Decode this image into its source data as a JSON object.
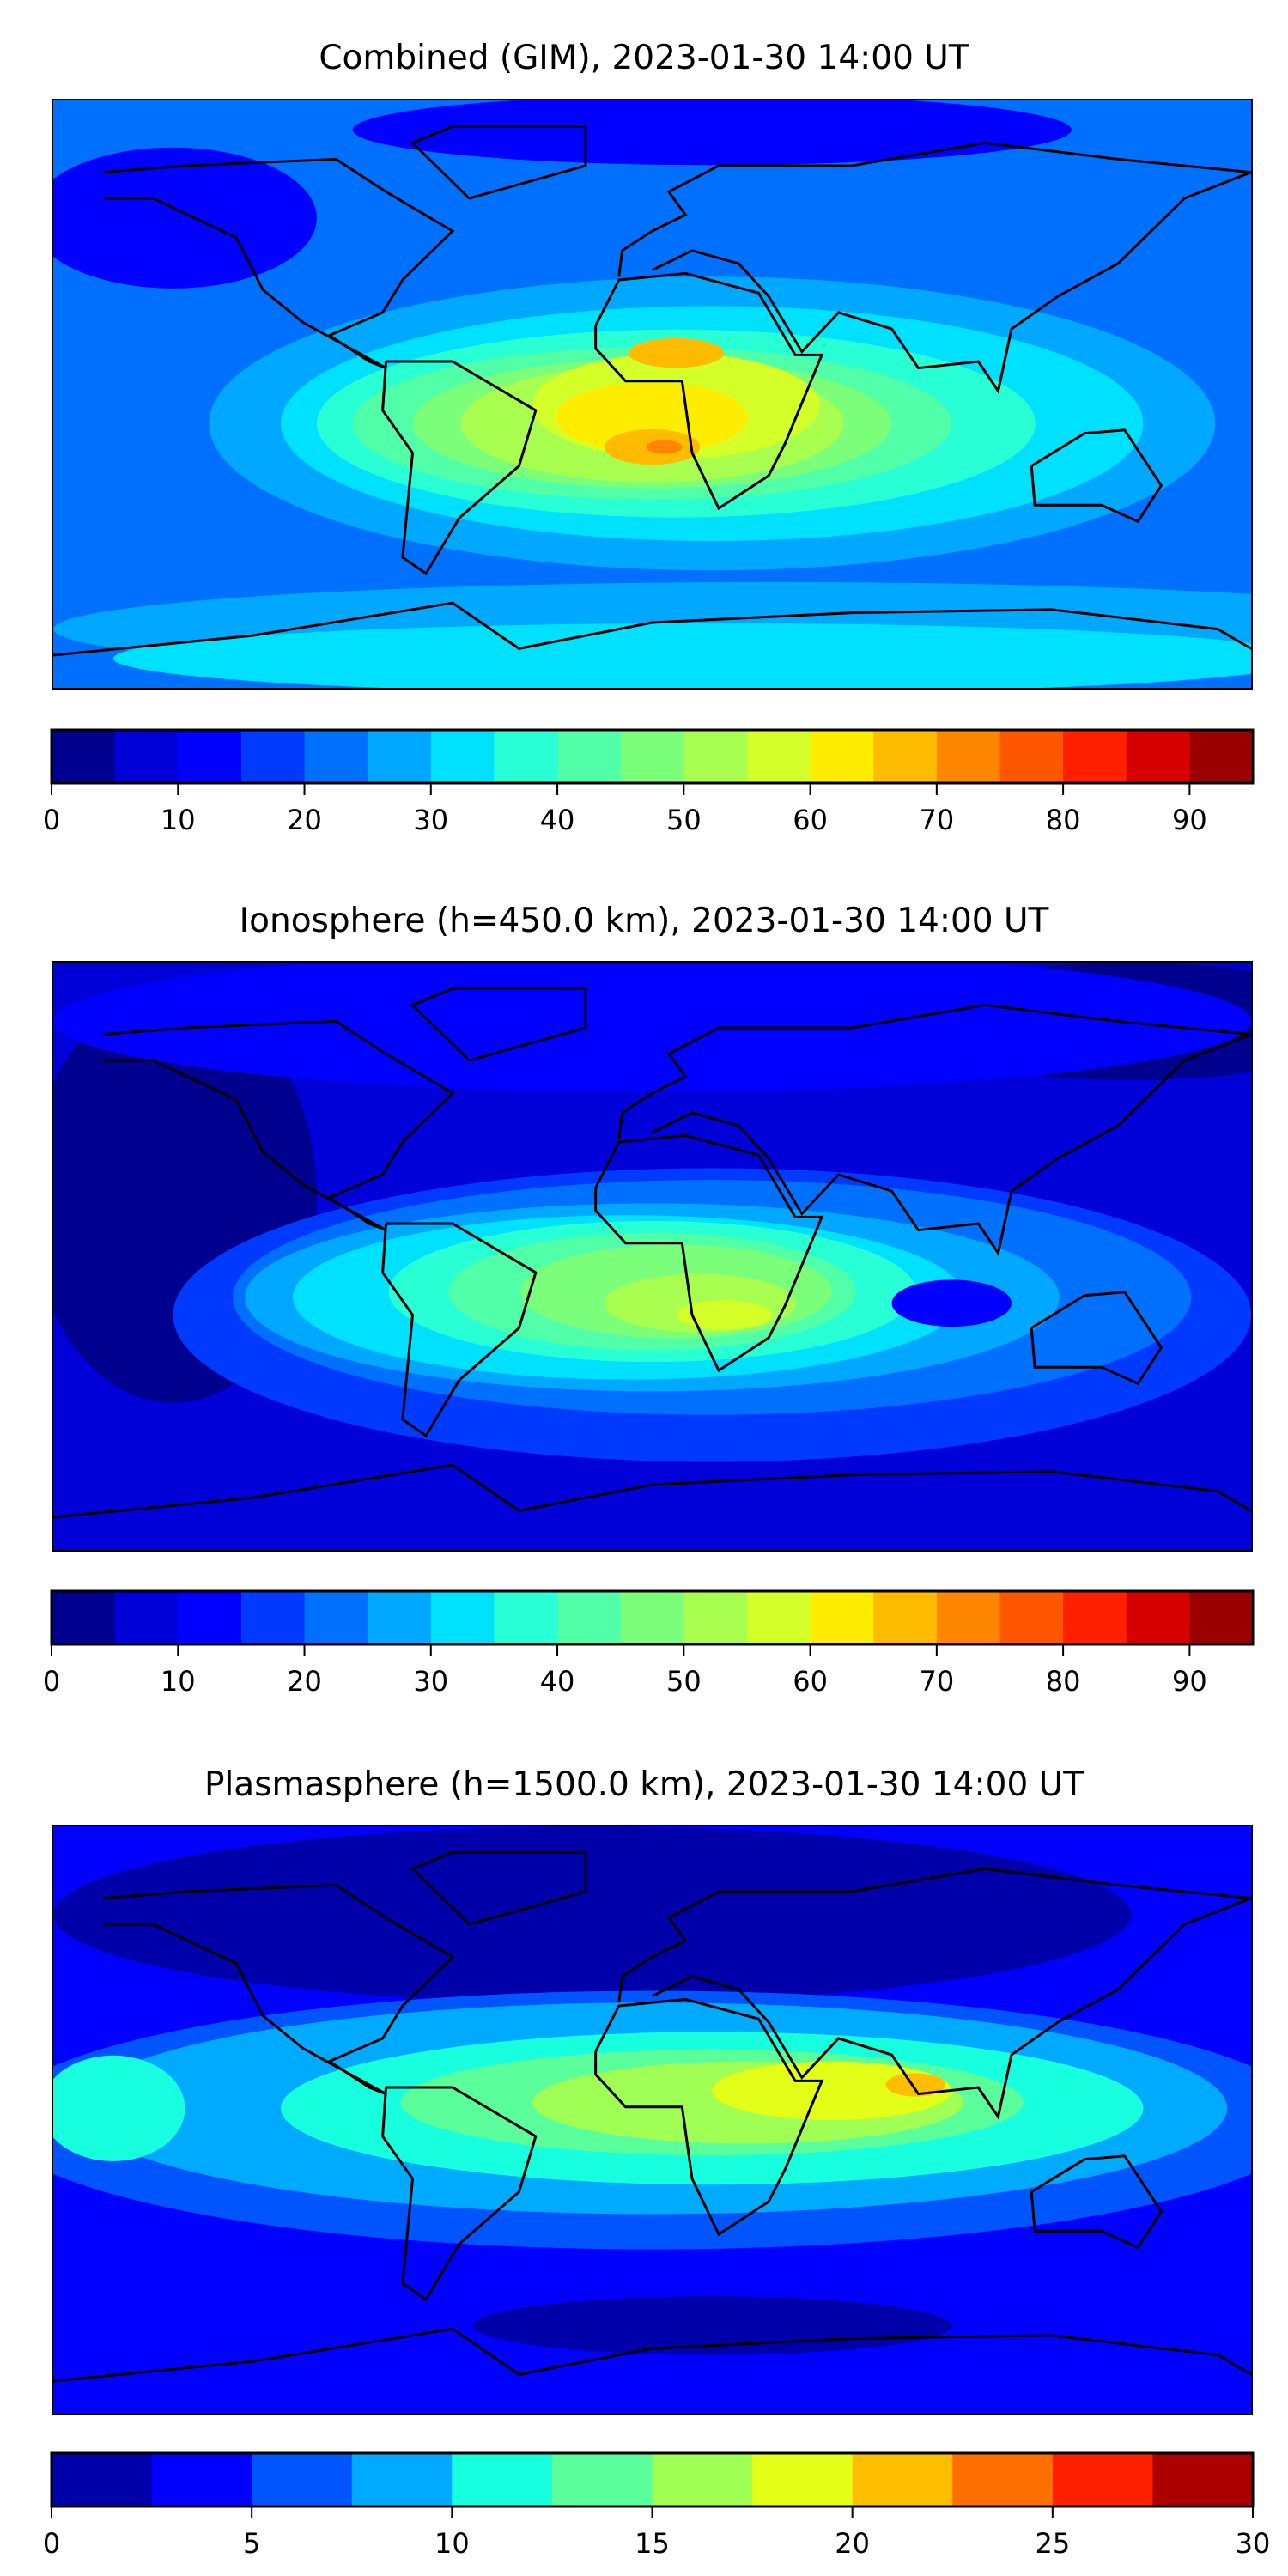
{
  "chart_data": [
    {
      "type": "heatmap",
      "title": "Combined (GIM), 2023-01-30 14:00 UT",
      "levels": [
        0,
        5,
        10,
        15,
        20,
        25,
        30,
        35,
        40,
        45,
        50,
        55,
        60,
        65,
        70,
        75,
        80,
        85,
        90,
        95
      ],
      "colors": [
        "#00008f",
        "#0000d9",
        "#0000ff",
        "#0039ff",
        "#0070ff",
        "#00a8ff",
        "#00e0ff",
        "#28ffd4",
        "#50ffa8",
        "#7bff7b",
        "#a8ff50",
        "#d4ff28",
        "#ffed00",
        "#ffbb00",
        "#ff8700",
        "#ff5600",
        "#ff2000",
        "#d70000",
        "#9b0000"
      ],
      "colorbar_ticks": [
        "0",
        "10",
        "20",
        "30",
        "40",
        "50",
        "60",
        "70",
        "80",
        "90"
      ],
      "colorbar_tick_values": [
        0,
        10,
        20,
        30,
        40,
        50,
        60,
        70,
        80,
        90
      ],
      "vmin": 0,
      "vmax": 95,
      "peak_value_approx": 67
    },
    {
      "type": "heatmap",
      "title": "Ionosphere  (h=450.0 km), 2023-01-30 14:00 UT",
      "levels": [
        0,
        5,
        10,
        15,
        20,
        25,
        30,
        35,
        40,
        45,
        50,
        55,
        60,
        65,
        70,
        75,
        80,
        85,
        90,
        95
      ],
      "colors": [
        "#00008f",
        "#0000d9",
        "#0000ff",
        "#0039ff",
        "#0070ff",
        "#00a8ff",
        "#00e0ff",
        "#28ffd4",
        "#50ffa8",
        "#7bff7b",
        "#a8ff50",
        "#d4ff28",
        "#ffed00",
        "#ffbb00",
        "#ff8700",
        "#ff5600",
        "#ff2000",
        "#d70000",
        "#9b0000"
      ],
      "colorbar_ticks": [
        "0",
        "10",
        "20",
        "30",
        "40",
        "50",
        "60",
        "70",
        "80",
        "90"
      ],
      "colorbar_tick_values": [
        0,
        10,
        20,
        30,
        40,
        50,
        60,
        70,
        80,
        90
      ],
      "vmin": 0,
      "vmax": 95,
      "peak_value_approx": 58
    },
    {
      "type": "heatmap",
      "title": "Plasmasphere (h=1500.0 km), 2023-01-30 14:00 UT",
      "levels": [
        0,
        2.5,
        5,
        7.5,
        10,
        12.5,
        15,
        17.5,
        20,
        22.5,
        25,
        27.5,
        30
      ],
      "colors": [
        "#0000aa",
        "#0000ff",
        "#0055ff",
        "#00aaff",
        "#17ffdf",
        "#5aff9c",
        "#a0ff55",
        "#e3ff17",
        "#ffbf00",
        "#ff6f00",
        "#ff2000",
        "#aa0000"
      ],
      "colorbar_ticks": [
        "0",
        "5",
        "10",
        "15",
        "20",
        "25",
        "30"
      ],
      "colorbar_tick_values": [
        0,
        5,
        10,
        15,
        20,
        25,
        30
      ],
      "vmin": 0,
      "vmax": 30,
      "peak_value_approx": 21
    }
  ]
}
